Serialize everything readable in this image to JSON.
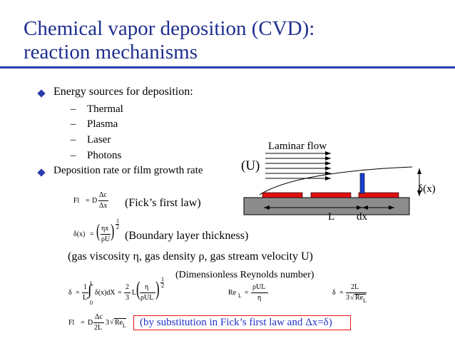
{
  "title": {
    "line1": "Chemical vapor deposition (CVD):",
    "line2": "reaction mechanisms"
  },
  "bullets": [
    {
      "text": "Energy sources for deposition:",
      "sub": [
        "Thermal",
        "Plasma",
        "Laser",
        "Photons"
      ]
    },
    {
      "text": "Deposition rate or film growth rate"
    }
  ],
  "dash": "–",
  "equations": {
    "fick": {
      "lhs": "Fl",
      "eq": "=",
      "d": "D",
      "num": "Δc",
      "den": "Δx",
      "caption": "(Fick’s first law)"
    },
    "boundary": {
      "lhs": "δ(x)",
      "eq": "=",
      "num": "ηx",
      "den": "ρU",
      "exp_num": "1",
      "exp_den": "2",
      "caption": "(Boundary layer thickness)"
    },
    "gas_note": "(gas viscosity η, gas density ρ, gas stream velocity U)",
    "delta_avg": {
      "lhs": "δ",
      "eq": "=",
      "f1_num": "1",
      "f1_den": "L",
      "int_top": "L",
      "int_bot": "0",
      "integrand": "δ(x)dX",
      "eq2": "=",
      "f2_num": "2",
      "f2_den": "3",
      "L": "L",
      "f3_num": "η",
      "f3_den": "ρUL",
      "exp_num": "1",
      "exp_den": "2"
    },
    "reynolds": {
      "caption": "(Dimensionless Reynolds number)",
      "lhs": "Re",
      "lhs_sub": "L",
      "eq": "=",
      "num": "ρUL",
      "den": "η"
    },
    "delta_re": {
      "lhs": "δ",
      "eq": "=",
      "num": "2L",
      "den_pre": "3",
      "den_re": "Re",
      "den_sub": "L"
    },
    "final": {
      "lhs": "Fl",
      "eq": "=",
      "d": "D",
      "num": "Δc",
      "den": "2L",
      "coef": "3",
      "re": "Re",
      "re_sub": "L"
    },
    "note": "(by substitution in Fick’s first law and Δx=δ)"
  },
  "diagram": {
    "flow_label": "Laminar flow",
    "u_label": "(U)",
    "delta_label": "δ(x)",
    "l_label": "L",
    "dx_label": "dx"
  },
  "colors": {
    "title": "#1f2f8e",
    "rule": "#2b3bb0",
    "bullet": "#2b3bb0",
    "substrate": "#8c8c8c",
    "film": "#e01010",
    "probe": "#1a3fd0",
    "note_border": "#e11111",
    "note_text": "#2233c8"
  }
}
